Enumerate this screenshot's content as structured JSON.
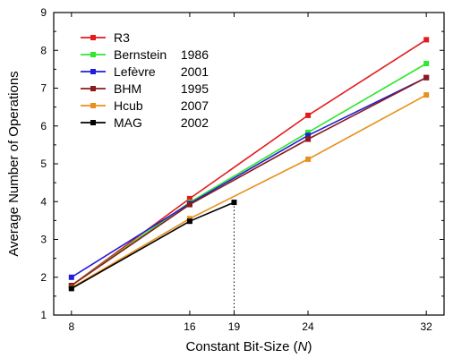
{
  "chart_data": {
    "type": "line",
    "xlabel_prefix": "Constant Bit-Size (",
    "xlabel_var": "N",
    "xlabel_suffix": ")",
    "ylabel": "Average Number of Operations",
    "xlim": [
      6.8,
      33.2
    ],
    "ylim": [
      1,
      9
    ],
    "xticks": [
      8,
      16,
      19,
      24,
      32
    ],
    "yticks": [
      1,
      2,
      3,
      4,
      5,
      6,
      7,
      8,
      9
    ],
    "legend_position": "top-left",
    "series": [
      {
        "name": "R3",
        "year": "",
        "color": "#e41a1c",
        "x": [
          8,
          16,
          24,
          32
        ],
        "y": [
          1.78,
          4.08,
          6.28,
          8.28
        ]
      },
      {
        "name": "Bernstein",
        "year": "1986",
        "color": "#2ee82e",
        "x": [
          8,
          16,
          24,
          32
        ],
        "y": [
          1.78,
          3.98,
          5.83,
          7.65
        ]
      },
      {
        "name": "Lefèvre",
        "year": "2001",
        "color": "#1f1fd6",
        "x": [
          8,
          16,
          24,
          32
        ],
        "y": [
          2.0,
          3.95,
          5.75,
          7.28
        ]
      },
      {
        "name": "BHM",
        "year": "1995",
        "color": "#8b1a1a",
        "x": [
          8,
          16,
          24,
          32
        ],
        "y": [
          1.78,
          3.92,
          5.65,
          7.28
        ]
      },
      {
        "name": "Hcub",
        "year": "2007",
        "color": "#e8901c",
        "x": [
          8,
          16,
          24,
          32
        ],
        "y": [
          1.72,
          3.55,
          5.12,
          6.82
        ]
      },
      {
        "name": "MAG",
        "year": "2002",
        "color": "#000000",
        "x": [
          8,
          16,
          19
        ],
        "y": [
          1.7,
          3.48,
          3.98
        ]
      }
    ],
    "reference_line": {
      "x": 19,
      "y_from": 1,
      "y_to": 3.98,
      "style": "dotted"
    }
  }
}
